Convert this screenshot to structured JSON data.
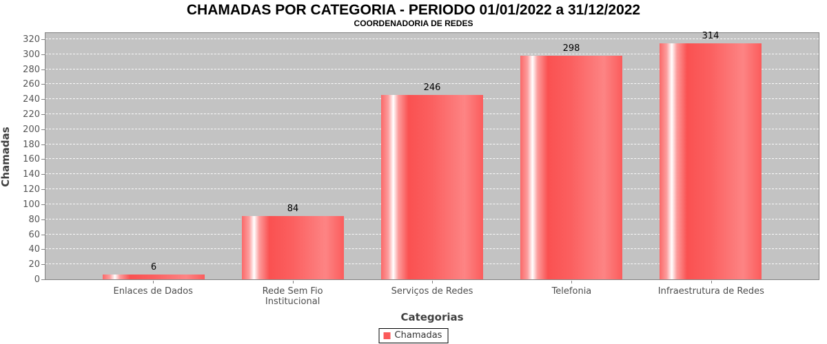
{
  "chart_data": {
    "type": "bar",
    "title": "CHAMADAS POR CATEGORIA - PERIODO 01/01/2022 a 31/12/2022",
    "subtitle": "COORDENADORIA DE REDES",
    "xlabel": "Categorias",
    "ylabel": "Chamadas",
    "categories": [
      "Enlaces de Dados",
      "Rede Sem Fio\nInstitucional",
      "Serviços de Redes",
      "Telefonia",
      "Infraestrutura de Redes"
    ],
    "series": [
      {
        "name": "Chamadas",
        "values": [
          6,
          84,
          246,
          298,
          314
        ]
      }
    ],
    "value_labels": [
      "6",
      "84",
      "246",
      "298",
      "314"
    ],
    "ylim": [
      0,
      330
    ],
    "yticks": [
      0,
      20,
      40,
      60,
      80,
      100,
      120,
      140,
      160,
      180,
      200,
      220,
      240,
      260,
      280,
      300,
      320
    ],
    "grid": "horizontal white dashed lines on gray plot background",
    "legend_position": "bottom-center",
    "colors": {
      "bar_solid": "#fb5a5a",
      "bar_highlight": "#ffffff",
      "plot_background": "#c3c3c3",
      "plot_border": "#7f7f7f",
      "gridline": "#ffffff",
      "tick_text": "#555555",
      "axis_label_text": "#404040",
      "title_text": "#000000",
      "value_label_text": "#000000",
      "legend_border": "#000000"
    }
  }
}
